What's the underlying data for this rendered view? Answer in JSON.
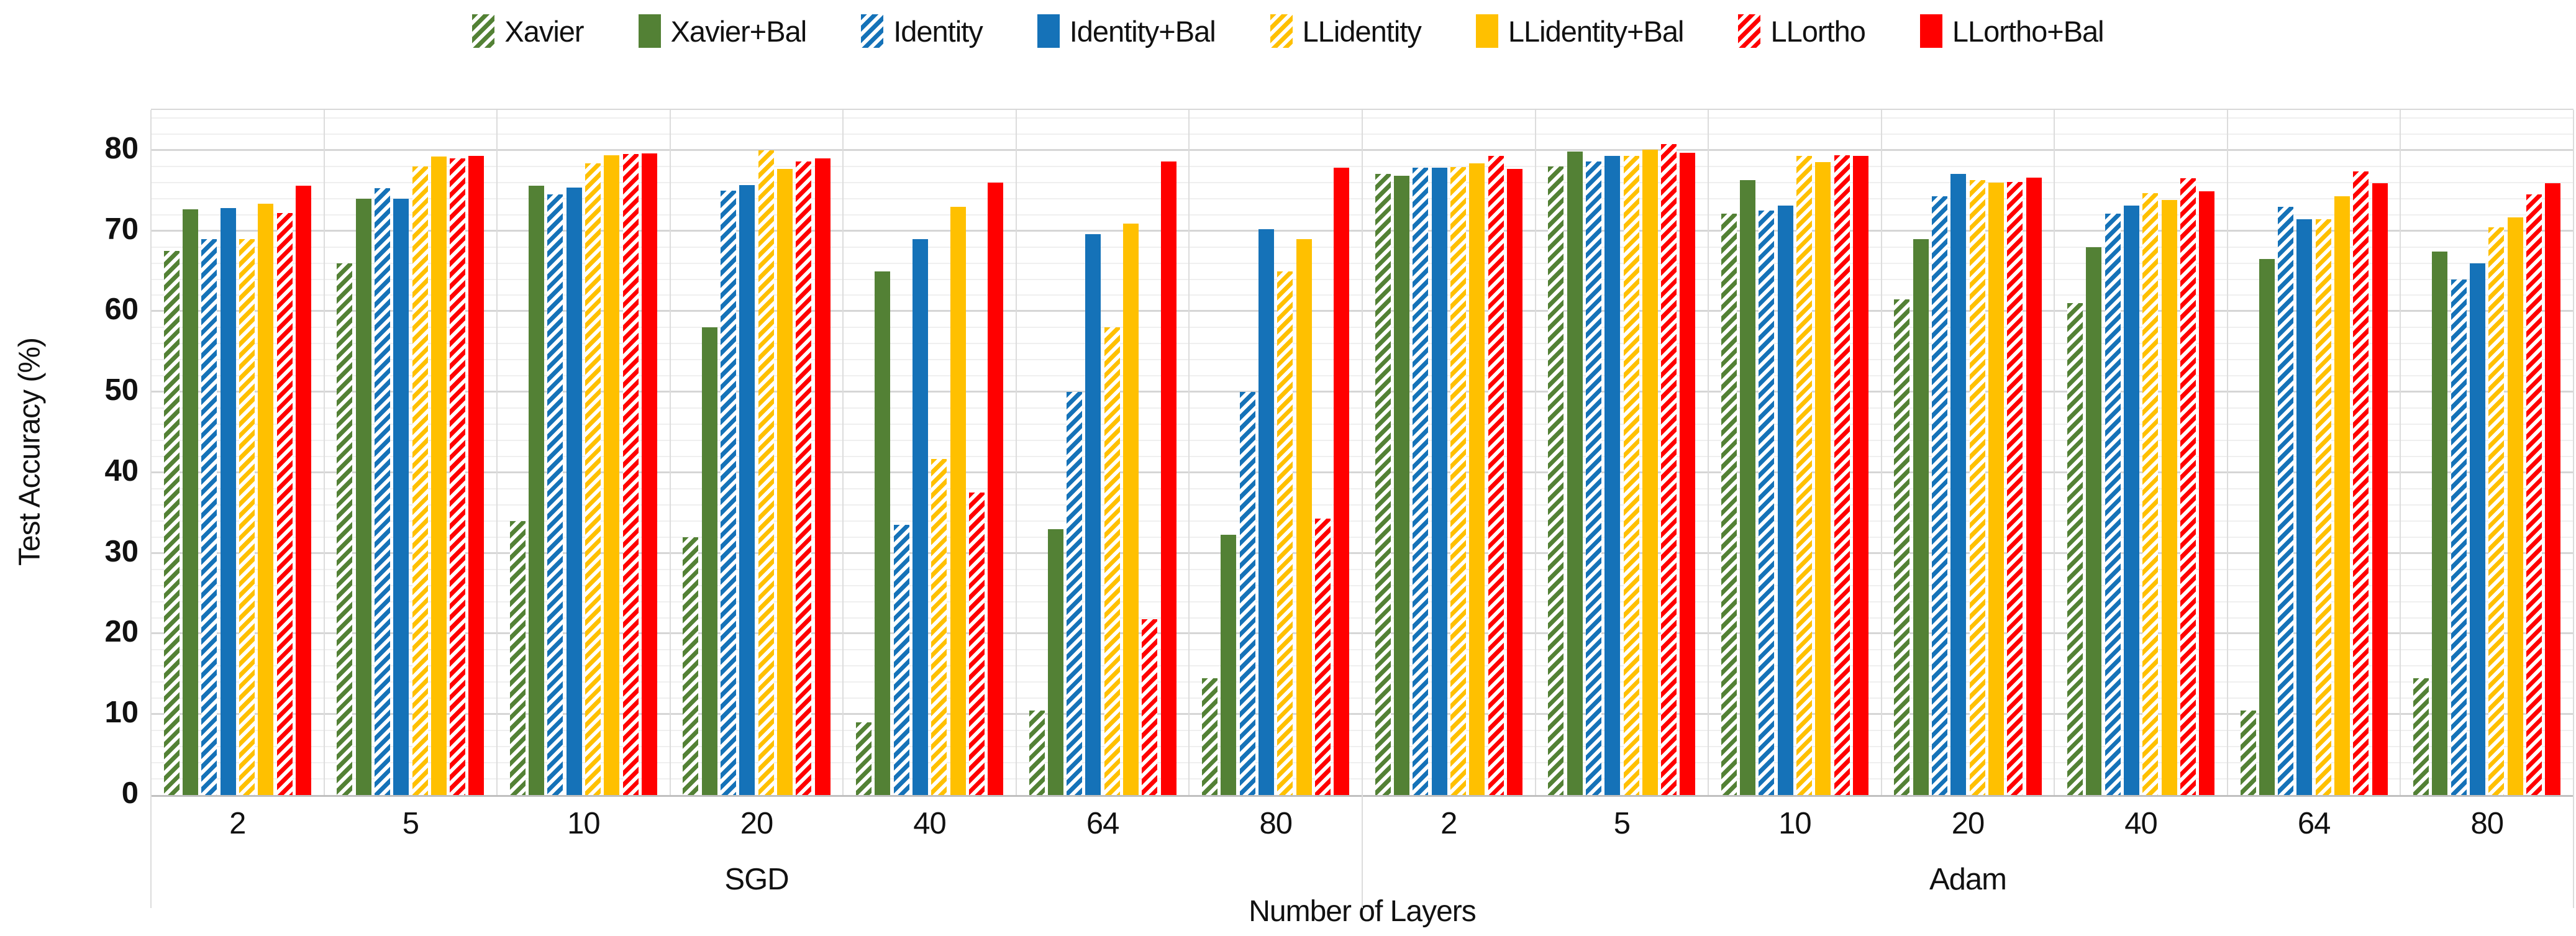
{
  "chart_data": {
    "type": "bar",
    "title": "",
    "ylabel": "Test Accuracy (%)",
    "xlabel": "Number of Layers",
    "ylim": [
      0,
      85
    ],
    "yticks": [
      "0",
      "10",
      "20",
      "30",
      "40",
      "50",
      "60",
      "70",
      "80"
    ],
    "ytick_values": [
      0,
      10,
      20,
      30,
      40,
      50,
      60,
      70,
      80
    ],
    "minor_grid_step": 2,
    "major_grid_step": 10,
    "grid": "on",
    "legend_position": "top",
    "colors": {
      "green": "#538135",
      "blue": "#1572B8",
      "yellow": "#FFC000",
      "red": "#FF0000",
      "major_grid": "#d6d6d6",
      "minor_grid": "#efefef",
      "axis_line": "#bfbfbf",
      "separator": "#dcdcdc"
    },
    "series_meta": [
      {
        "name": "Xavier",
        "color": "#538135",
        "pattern": "hatch"
      },
      {
        "name": "Xavier+Bal",
        "color": "#538135",
        "pattern": "solid"
      },
      {
        "name": "Identity",
        "color": "#1572B8",
        "pattern": "hatch"
      },
      {
        "name": "Identity+Bal",
        "color": "#1572B8",
        "pattern": "solid"
      },
      {
        "name": "LLidentity",
        "color": "#FFC000",
        "pattern": "hatch"
      },
      {
        "name": "LLidentity+Bal",
        "color": "#FFC000",
        "pattern": "solid"
      },
      {
        "name": "LLortho",
        "color": "#FF0000",
        "pattern": "hatch"
      },
      {
        "name": "LLortho+Bal",
        "color": "#FF0000",
        "pattern": "solid"
      }
    ],
    "panels": [
      {
        "label": "SGD",
        "categories": [
          "2",
          "5",
          "10",
          "20",
          "40",
          "64",
          "80"
        ],
        "series": [
          {
            "name": "Xavier",
            "values": [
              67.5,
              66.0,
              34.0,
              32.0,
              9.0,
              10.5,
              14.5
            ]
          },
          {
            "name": "Xavier+Bal",
            "values": [
              72.7,
              74.0,
              75.6,
              58.0,
              65.0,
              33.0,
              32.3
            ]
          },
          {
            "name": "Identity",
            "values": [
              69.0,
              75.3,
              74.5,
              75.0,
              33.5,
              50.0,
              50.0
            ]
          },
          {
            "name": "Identity+Bal",
            "values": [
              72.8,
              74.0,
              75.4,
              75.7,
              69.0,
              69.6,
              70.2
            ]
          },
          {
            "name": "LLidentity",
            "values": [
              69.0,
              78.0,
              78.4,
              80.0,
              41.7,
              58.0,
              65.0
            ]
          },
          {
            "name": "LLidentity+Bal",
            "values": [
              73.4,
              79.2,
              79.4,
              77.7,
              73.0,
              70.9,
              69.0
            ]
          },
          {
            "name": "LLortho",
            "values": [
              72.2,
              79.0,
              79.5,
              78.6,
              37.5,
              21.8,
              34.3
            ]
          },
          {
            "name": "LLortho+Bal",
            "values": [
              75.6,
              79.3,
              79.6,
              79.0,
              76.0,
              78.6,
              77.8
            ]
          }
        ]
      },
      {
        "label": "Adam",
        "categories": [
          "2",
          "5",
          "10",
          "20",
          "40",
          "64",
          "80"
        ],
        "series": [
          {
            "name": "Xavier",
            "values": [
              77.1,
              78.0,
              72.1,
              61.5,
              61.0,
              10.5,
              14.5
            ]
          },
          {
            "name": "Xavier+Bal",
            "values": [
              76.8,
              79.8,
              76.3,
              69.0,
              68.0,
              66.5,
              67.4
            ]
          },
          {
            "name": "Identity",
            "values": [
              77.8,
              78.6,
              72.5,
              74.3,
              72.1,
              73.0,
              64.0
            ]
          },
          {
            "name": "Identity+Bal",
            "values": [
              77.8,
              79.3,
              73.1,
              77.1,
              73.1,
              71.4,
              66.0
            ]
          },
          {
            "name": "LLidentity",
            "values": [
              77.9,
              79.3,
              79.3,
              76.3,
              74.7,
              71.4,
              70.4
            ]
          },
          {
            "name": "LLidentity+Bal",
            "values": [
              78.4,
              80.1,
              78.5,
              76.0,
              73.8,
              74.3,
              71.7
            ]
          },
          {
            "name": "LLortho",
            "values": [
              79.3,
              80.8,
              79.4,
              76.1,
              76.5,
              77.4,
              74.5
            ]
          },
          {
            "name": "LLortho+Bal",
            "values": [
              77.7,
              79.7,
              79.3,
              76.6,
              74.9,
              75.9,
              75.9
            ]
          }
        ]
      }
    ]
  }
}
